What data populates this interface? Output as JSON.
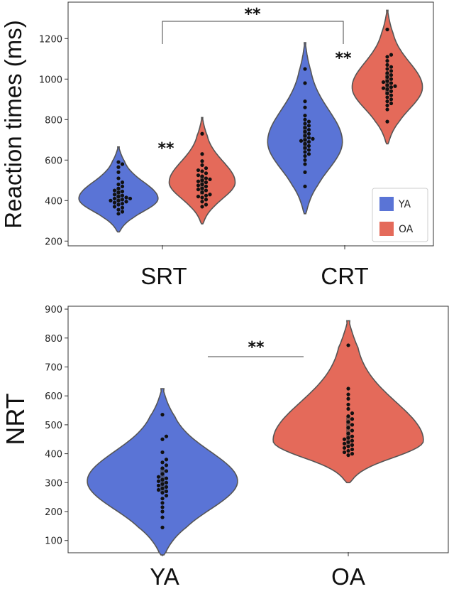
{
  "chart_data": [
    {
      "type": "violin",
      "ylabel": "Reaction times (ms)",
      "ylim": [
        180,
        1380
      ],
      "yticks": [
        200,
        400,
        600,
        800,
        1000,
        1200
      ],
      "categories": [
        "SRT",
        "CRT"
      ],
      "legend": {
        "position": "bottom-right",
        "entries": [
          {
            "name": "YA",
            "color": "#5a74d6"
          },
          {
            "name": "OA",
            "color": "#e46a5a"
          }
        ]
      },
      "violins": [
        {
          "category": "SRT",
          "series": "YA",
          "min": 245,
          "max": 665,
          "peak": 410,
          "width": 0.9,
          "points": [
            335,
            345,
            355,
            365,
            370,
            380,
            385,
            390,
            395,
            400,
            400,
            405,
            410,
            410,
            415,
            420,
            425,
            430,
            440,
            445,
            450,
            460,
            470,
            480,
            490,
            510,
            540,
            565,
            580,
            590
          ]
        },
        {
          "category": "SRT",
          "series": "OA",
          "min": 285,
          "max": 810,
          "peak": 490,
          "width": 0.75,
          "points": [
            370,
            380,
            395,
            405,
            415,
            420,
            425,
            430,
            440,
            450,
            455,
            460,
            470,
            475,
            480,
            490,
            495,
            500,
            505,
            510,
            520,
            525,
            535,
            545,
            550,
            560,
            575,
            595,
            630,
            730
          ]
        },
        {
          "category": "CRT",
          "series": "YA",
          "min": 335,
          "max": 1180,
          "peak": 690,
          "width": 0.85,
          "points": [
            470,
            540,
            580,
            600,
            620,
            630,
            640,
            650,
            660,
            670,
            680,
            690,
            695,
            700,
            705,
            710,
            720,
            730,
            740,
            750,
            760,
            770,
            780,
            790,
            800,
            820,
            860,
            890,
            980,
            1050
          ]
        },
        {
          "category": "CRT",
          "series": "OA",
          "min": 680,
          "max": 1340,
          "peak": 960,
          "width": 0.8,
          "points": [
            790,
            850,
            870,
            880,
            890,
            900,
            910,
            920,
            930,
            940,
            950,
            955,
            960,
            965,
            970,
            980,
            985,
            990,
            1000,
            1010,
            1020,
            1030,
            1040,
            1050,
            1060,
            1070,
            1090,
            1110,
            1120,
            1245
          ]
        }
      ],
      "annotations": [
        {
          "text": "**",
          "between": [
            "SRT",
            "CRT"
          ],
          "type": "bracket"
        },
        {
          "text": "**",
          "between": [
            "SRT-YA",
            "SRT-OA"
          ]
        },
        {
          "text": "**",
          "between": [
            "CRT-YA",
            "CRT-OA"
          ]
        }
      ]
    },
    {
      "type": "violin",
      "ylabel": "NRT",
      "ylim": [
        60,
        910
      ],
      "yticks": [
        100,
        200,
        300,
        400,
        500,
        600,
        700,
        800,
        900
      ],
      "categories": [
        "YA",
        "OA"
      ],
      "violins": [
        {
          "category": "YA",
          "series": "YA",
          "min": 50,
          "max": 625,
          "peak": 305,
          "width": 1.0,
          "points": [
            145,
            180,
            200,
            215,
            230,
            245,
            255,
            265,
            270,
            275,
            280,
            285,
            290,
            295,
            300,
            305,
            310,
            315,
            320,
            330,
            340,
            350,
            360,
            370,
            380,
            405,
            450,
            460,
            535
          ]
        },
        {
          "category": "OA",
          "series": "OA",
          "min": 300,
          "max": 860,
          "peak": 445,
          "width": 1.0,
          "points": [
            395,
            400,
            405,
            410,
            415,
            420,
            425,
            430,
            435,
            440,
            445,
            450,
            455,
            460,
            470,
            480,
            490,
            500,
            510,
            520,
            530,
            540,
            555,
            570,
            590,
            605,
            625,
            775
          ]
        }
      ],
      "annotations": [
        {
          "text": "**",
          "between": [
            "YA",
            "OA"
          ],
          "type": "line"
        }
      ]
    }
  ]
}
